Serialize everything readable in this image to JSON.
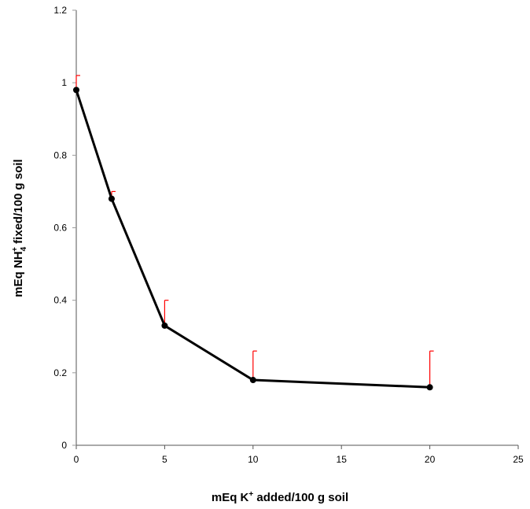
{
  "chart_data": {
    "type": "line",
    "title": "",
    "xlabel_parts": {
      "pre": "mEq K",
      "sup": "+",
      "post": " added/100 g soil"
    },
    "ylabel_parts": {
      "pre": "mEq NH",
      "sub": "4",
      "sup": "+",
      "post": " fixed/100 g soil"
    },
    "xlim": [
      0,
      25
    ],
    "ylim": [
      0,
      1.2
    ],
    "xticks": [
      0,
      5,
      10,
      15,
      20,
      25
    ],
    "yticks": [
      0,
      0.2,
      0.4,
      0.6,
      0.8,
      1,
      1.2
    ],
    "ytick_labels": [
      "0",
      "0.2",
      "0.4",
      "0.6",
      "0.8",
      "1",
      "1.2"
    ],
    "grid": false,
    "series": [
      {
        "name": "NH4+ fixed",
        "color": "#000000",
        "x": [
          0,
          2,
          5,
          10,
          20
        ],
        "y": [
          0.98,
          0.68,
          0.33,
          0.18,
          0.16
        ],
        "error_upper": [
          0.04,
          0.02,
          0.07,
          0.08,
          0.1
        ],
        "error_color": "#ff0000"
      }
    ]
  }
}
